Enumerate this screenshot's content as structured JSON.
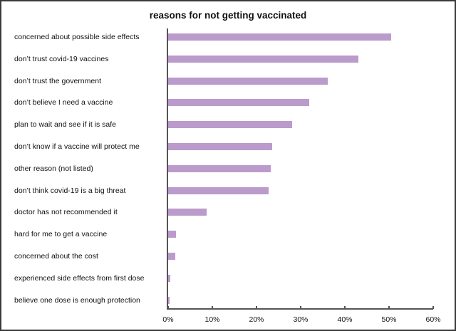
{
  "chart_data": {
    "type": "bar",
    "orientation": "horizontal",
    "title": "reasons for not getting vaccinated",
    "xlabel": "",
    "ylabel": "",
    "xlim": [
      0,
      60
    ],
    "x_ticks": [
      "0%",
      "10%",
      "20%",
      "30%",
      "40%",
      "50%",
      "60%"
    ],
    "grid": false,
    "legend": null,
    "bar_color": "#bb9bcb",
    "categories": [
      "concerned about possible side effects",
      "don’t trust covid-19 vaccines",
      "don’t trust the government",
      "don’t believe I need a vaccine",
      "plan to wait and see if it is safe",
      "don’t know if a vaccine will protect me",
      "other reason (not listed)",
      "don’t think covid-19 is a big threat",
      "doctor has not recommended it",
      "hard for me to get a vaccine",
      "concerned about the cost",
      "experienced side effects from first dose",
      "believe one dose is enough protection"
    ],
    "values": [
      50.5,
      43.1,
      36.2,
      32.0,
      28.1,
      23.6,
      23.3,
      22.8,
      8.7,
      1.7,
      1.6,
      0.5,
      0.4
    ]
  }
}
